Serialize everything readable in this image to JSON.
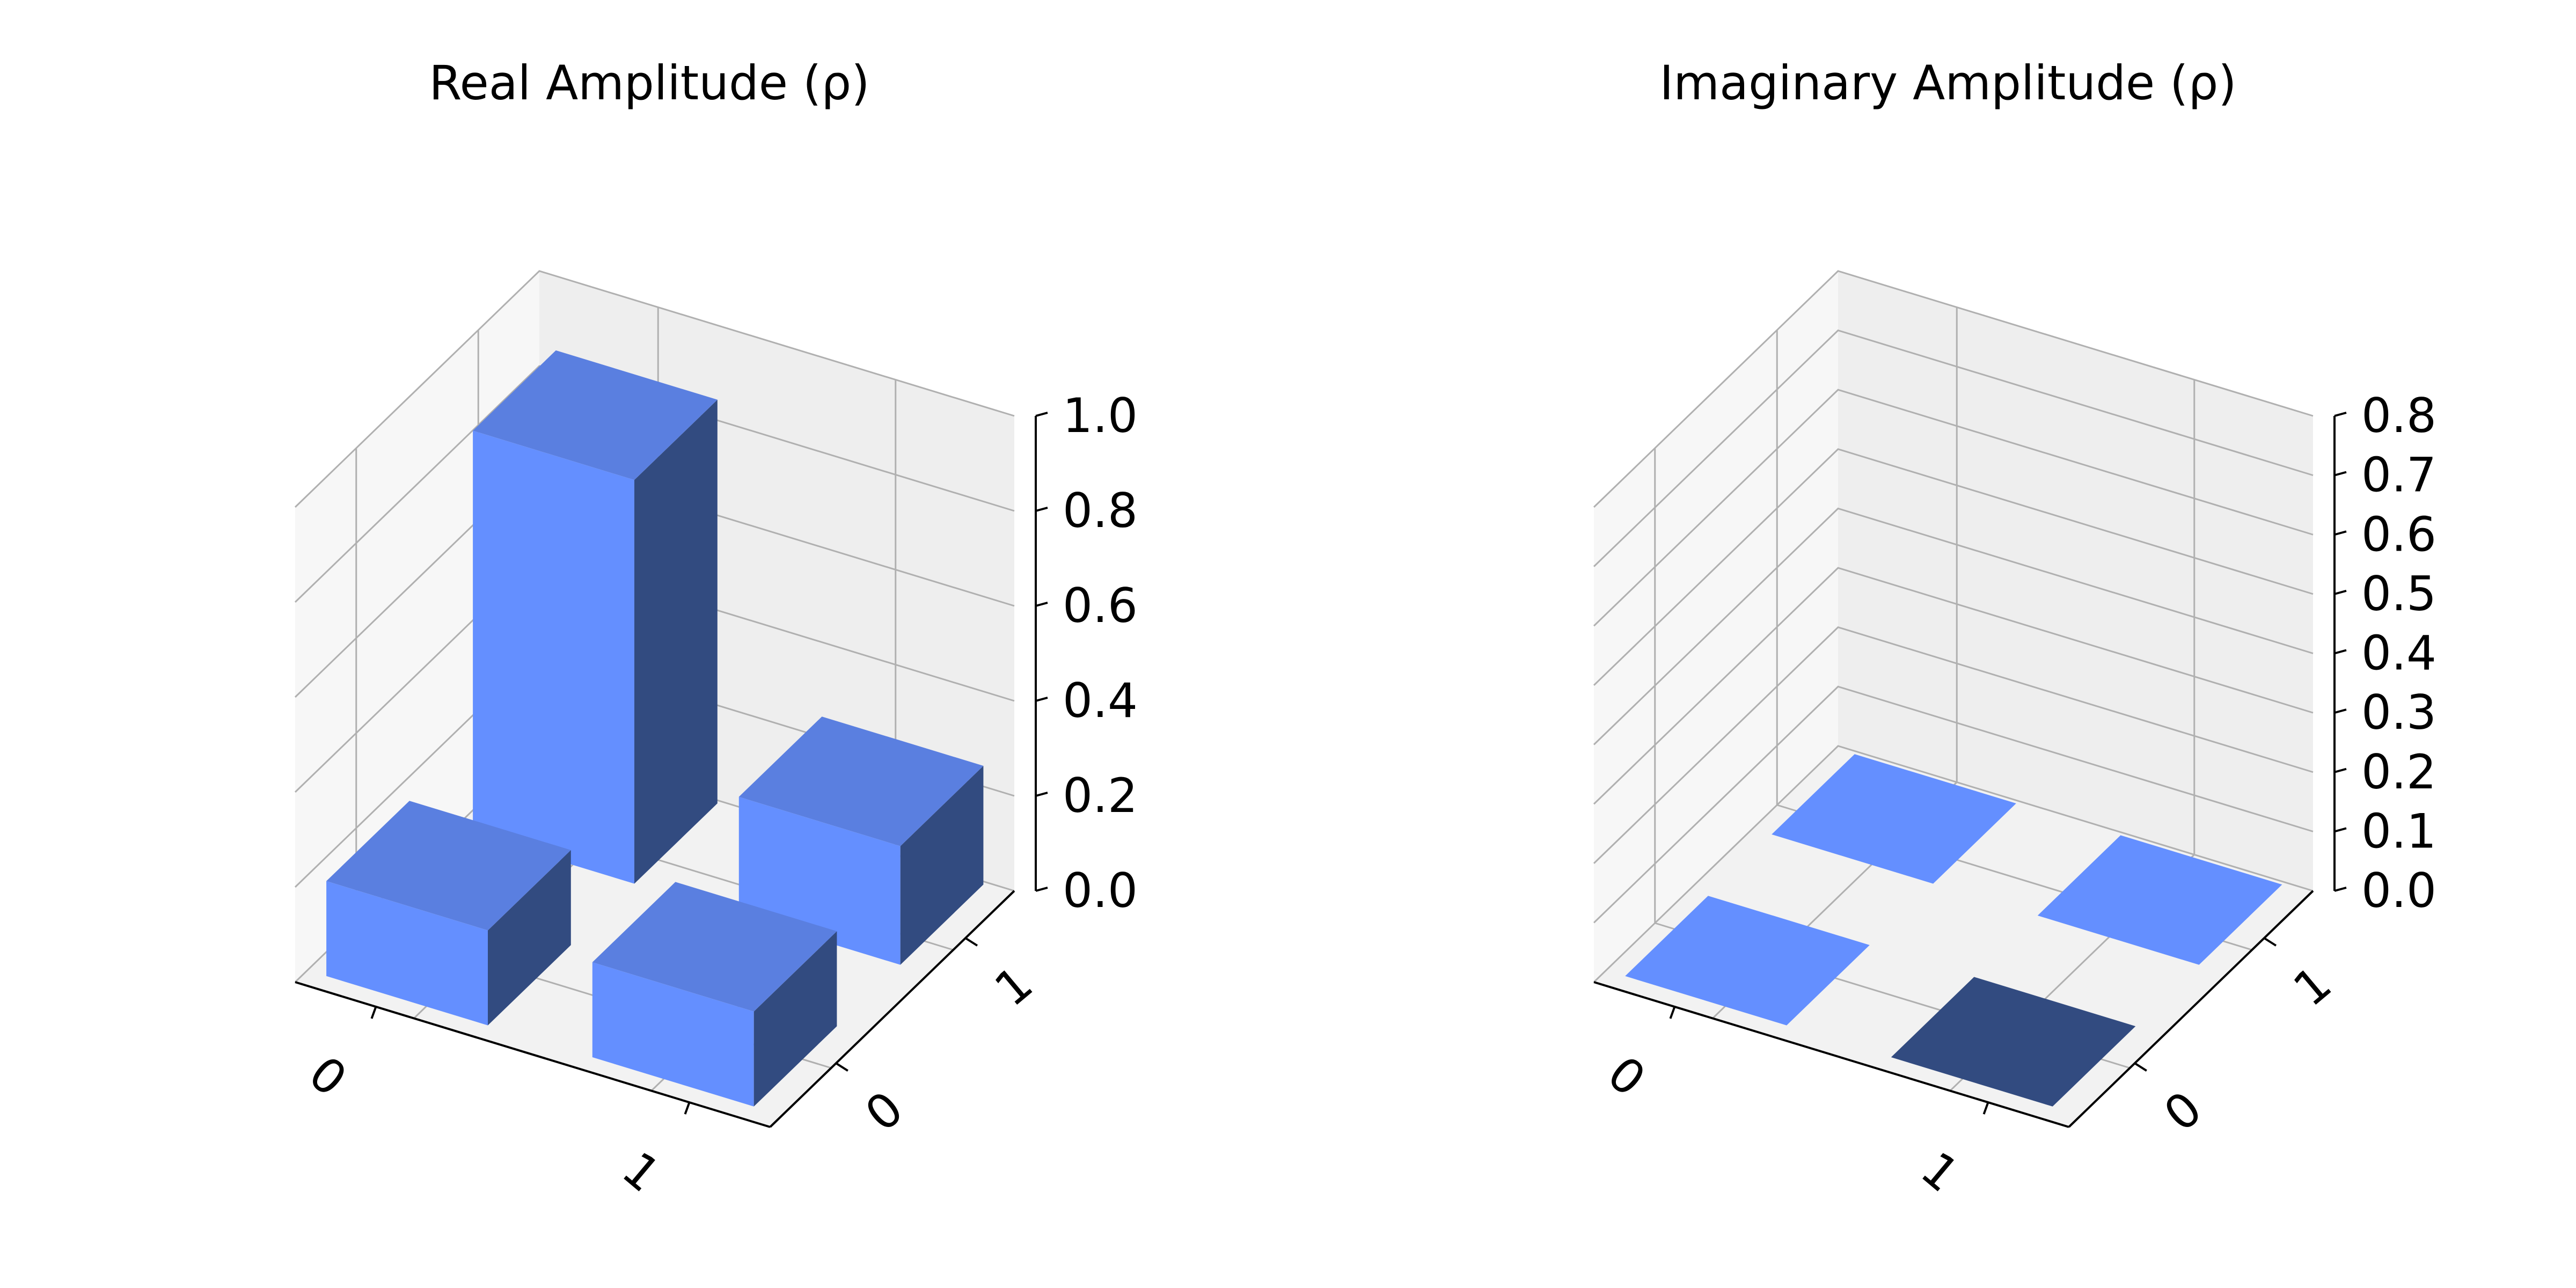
{
  "chart_data": [
    {
      "type": "bar3d",
      "title": "Real Amplitude (ρ)",
      "row_labels": [
        "0",
        "1"
      ],
      "col_labels": [
        "0",
        "1"
      ],
      "values": [
        [
          0.85,
          0.25
        ],
        [
          0.2,
          0.2
        ]
      ],
      "zlim": [
        0,
        1.0
      ],
      "zticks": [
        "0.0",
        "0.2",
        "0.4",
        "0.6",
        "0.8",
        "1.0"
      ],
      "grid": true
    },
    {
      "type": "bar3d",
      "title": "Imaginary Amplitude (ρ)",
      "row_labels": [
        "0",
        "1"
      ],
      "col_labels": [
        "0",
        "1"
      ],
      "values": [
        [
          0.0,
          0.0
        ],
        [
          0.0,
          0.0
        ]
      ],
      "zlim": [
        0,
        0.8
      ],
      "zticks": [
        "0.0",
        "0.1",
        "0.2",
        "0.3",
        "0.4",
        "0.5",
        "0.6",
        "0.7",
        "0.8"
      ],
      "grid": true
    }
  ],
  "colors": {
    "bar_front": "#648fff",
    "bar_top": "#5a7fe0",
    "bar_side": "#324b80",
    "pane": "#f2f2f2",
    "grid": "#b0b0b0"
  }
}
